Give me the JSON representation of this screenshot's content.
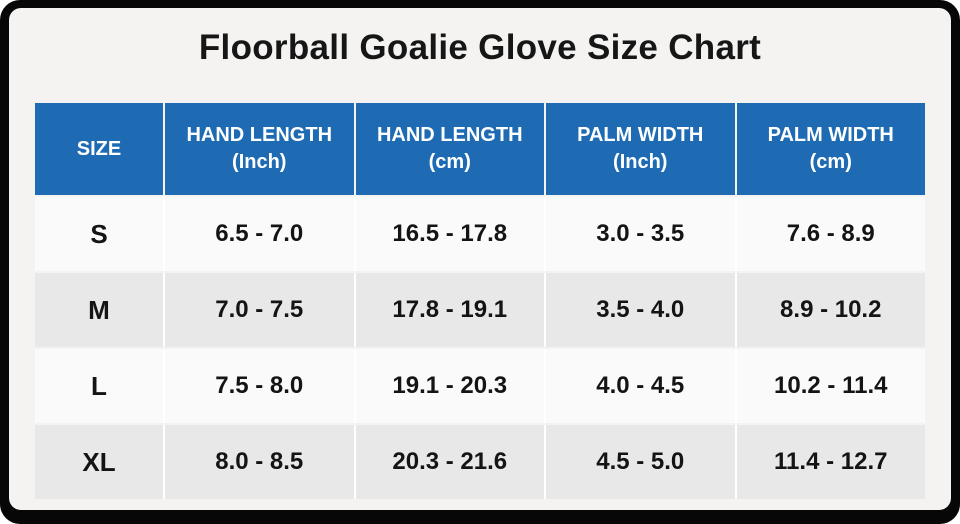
{
  "page": {
    "title": "Floorball Goalie Glove Size Chart"
  },
  "colors": {
    "frame_bg": "#070707",
    "card_bg": "#f4f3f1",
    "header_bg": "#1e6bb4",
    "header_text": "#ffffff",
    "row_light": "#fbfafa",
    "row_dark": "#e9e8e8",
    "body_text": "#141414"
  },
  "table": {
    "headers": [
      {
        "line1": "SIZE",
        "line2": ""
      },
      {
        "line1": "HAND LENGTH",
        "line2": "(Inch)"
      },
      {
        "line1": "HAND LENGTH",
        "line2": "(cm)"
      },
      {
        "line1": "PALM WIDTH",
        "line2": "(Inch)"
      },
      {
        "line1": "PALM WIDTH",
        "line2": "(cm)"
      }
    ],
    "rows": [
      {
        "size": "S",
        "hand_length_inch": "6.5 - 7.0",
        "hand_length_cm": "16.5 - 17.8",
        "palm_width_inch": "3.0 - 3.5",
        "palm_width_cm": "7.6 - 8.9"
      },
      {
        "size": "M",
        "hand_length_inch": "7.0 - 7.5",
        "hand_length_cm": "17.8 - 19.1",
        "palm_width_inch": "3.5 - 4.0",
        "palm_width_cm": "8.9 - 10.2"
      },
      {
        "size": "L",
        "hand_length_inch": "7.5 - 8.0",
        "hand_length_cm": "19.1 - 20.3",
        "palm_width_inch": "4.0 - 4.5",
        "palm_width_cm": "10.2 - 11.4"
      },
      {
        "size": "XL",
        "hand_length_inch": "8.0 - 8.5",
        "hand_length_cm": "20.3 - 21.6",
        "palm_width_inch": "4.5 - 5.0",
        "palm_width_cm": "11.4 - 12.7"
      }
    ]
  },
  "chart_data": {
    "type": "table",
    "title": "Floorball Goalie Glove Size Chart",
    "columns": [
      "SIZE",
      "HAND LENGTH (Inch)",
      "HAND LENGTH (cm)",
      "PALM WIDTH (Inch)",
      "PALM WIDTH (cm)"
    ],
    "rows": [
      [
        "S",
        "6.5 - 7.0",
        "16.5 - 17.8",
        "3.0 - 3.5",
        "7.6 - 8.9"
      ],
      [
        "M",
        "7.0 - 7.5",
        "17.8 - 19.1",
        "3.5 - 4.0",
        "8.9 - 10.2"
      ],
      [
        "L",
        "7.5 - 8.0",
        "19.1 - 20.3",
        "4.0 - 4.5",
        "10.2 - 11.4"
      ],
      [
        "XL",
        "8.0 - 8.5",
        "20.3 - 21.6",
        "4.5 - 5.0",
        "11.4 - 12.7"
      ]
    ]
  }
}
